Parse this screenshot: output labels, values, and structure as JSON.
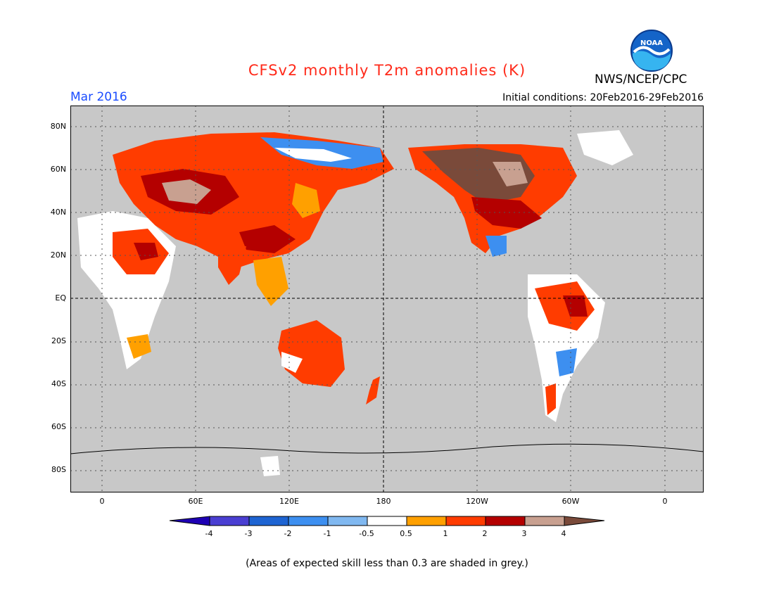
{
  "title": "CFSv2 monthly T2m anomalies (K)",
  "forecast_month": "Mar 2016",
  "initial_conditions": "Initial conditions: 20Feb2016-29Feb2016",
  "agency": "NWS/NCEP/CPC",
  "logo_text": "NOAA",
  "lat_labels": [
    "80N",
    "60N",
    "40N",
    "20N",
    "EQ",
    "20S",
    "40S",
    "60S",
    "80S"
  ],
  "lon_labels": [
    "0",
    "60E",
    "120E",
    "180",
    "120W",
    "60W",
    "0"
  ],
  "colorbar": {
    "labels": [
      "-4",
      "-3",
      "-2",
      "-1",
      "-0.5",
      "0.5",
      "1",
      "2",
      "3",
      "4"
    ],
    "colors": [
      "#1e00b4",
      "#4a3fd2",
      "#1e64d2",
      "#3d8ff0",
      "#80b8f0",
      "#ffffff",
      "#ffa000",
      "#ff3c00",
      "#b40000",
      "#c8a090",
      "#7a4a3a"
    ]
  },
  "note": "(Areas of expected skill less than 0.3 are shaded in grey.)",
  "colors": {
    "ocean_grey": "#c8c8c8",
    "title_red": "#ff2a1a",
    "month_blue": "#1a4cff"
  },
  "map_regions": [
    {
      "name": "russia-siberia",
      "anomaly_class": "1 to 3"
    },
    {
      "name": "kazakhstan-core",
      "anomaly_class": "3 to 4"
    },
    {
      "name": "east-siberia",
      "anomaly_class": "-1 to -0.5"
    },
    {
      "name": "canada-core",
      "anomaly_class": "above 4"
    },
    {
      "name": "eastern-us",
      "anomaly_class": "1 to 3"
    },
    {
      "name": "australia",
      "anomaly_class": "1 to 2"
    },
    {
      "name": "brazil",
      "anomaly_class": "1 to 3"
    },
    {
      "name": "north-africa",
      "anomaly_class": "0.5 to 2"
    }
  ]
}
